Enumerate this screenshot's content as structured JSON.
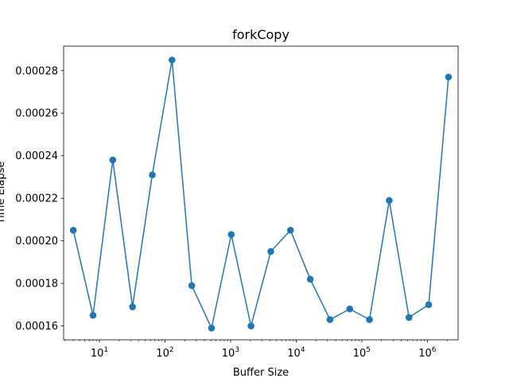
{
  "chart_data": {
    "type": "line",
    "title": "forkCopy",
    "xlabel": "Buffer Size",
    "ylabel": "Time Elapse",
    "xscale": "log",
    "xlim": [
      2.85,
      2940000
    ],
    "ylim": [
      0.0001535,
      0.0002915
    ],
    "grid": false,
    "legend": "none",
    "color": "#1f77b4",
    "marker": "circle",
    "x_ticks": [
      {
        "value": 10,
        "base": "10",
        "exp": "1"
      },
      {
        "value": 100,
        "base": "10",
        "exp": "2"
      },
      {
        "value": 1000,
        "base": "10",
        "exp": "3"
      },
      {
        "value": 10000,
        "base": "10",
        "exp": "4"
      },
      {
        "value": 100000,
        "base": "10",
        "exp": "5"
      },
      {
        "value": 1000000,
        "base": "10",
        "exp": "6"
      }
    ],
    "y_ticks": [
      {
        "value": 0.00016,
        "label": "0.00016"
      },
      {
        "value": 0.00018,
        "label": "0.00018"
      },
      {
        "value": 0.0002,
        "label": "0.00020"
      },
      {
        "value": 0.00022,
        "label": "0.00022"
      },
      {
        "value": 0.00024,
        "label": "0.00024"
      },
      {
        "value": 0.00026,
        "label": "0.00026"
      },
      {
        "value": 0.00028,
        "label": "0.00028"
      }
    ],
    "series": [
      {
        "x": [
          4,
          8,
          16,
          32,
          64,
          128,
          256,
          512,
          1024,
          2048,
          4096,
          8192,
          16384,
          32768,
          65536,
          131072,
          262144,
          524288,
          1048576,
          2097152
        ],
        "y": [
          0.000205,
          0.000165,
          0.000238,
          0.000169,
          0.000231,
          0.000285,
          0.000179,
          0.000159,
          0.000203,
          0.00016,
          0.000195,
          0.000205,
          0.000182,
          0.000163,
          0.000168,
          0.000163,
          0.000219,
          0.000164,
          0.00017,
          0.000277
        ]
      }
    ]
  }
}
